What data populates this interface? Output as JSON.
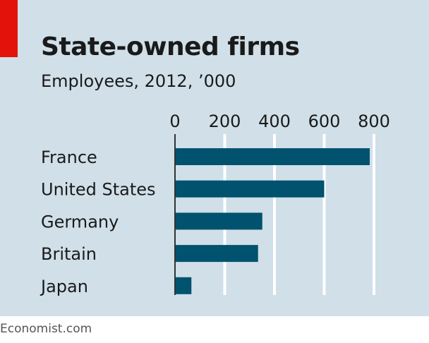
{
  "title": "State-owned firms",
  "subtitle": "Employees, 2012, ’000",
  "source": "Economist.com",
  "colors": {
    "bar": "#00526e",
    "background": "#d0dfe8",
    "accent": "#e3120b"
  },
  "chart_data": {
    "type": "bar",
    "orientation": "horizontal",
    "title": "State-owned firms",
    "subtitle": "Employees, 2012, ’000",
    "categories": [
      "France",
      "United States",
      "Germany",
      "Britain",
      "Japan"
    ],
    "values": [
      783,
      600,
      351,
      334,
      66
    ],
    "xlim": [
      0,
      800
    ],
    "xticks": [
      0,
      200,
      400,
      600,
      800
    ],
    "grid": true
  }
}
